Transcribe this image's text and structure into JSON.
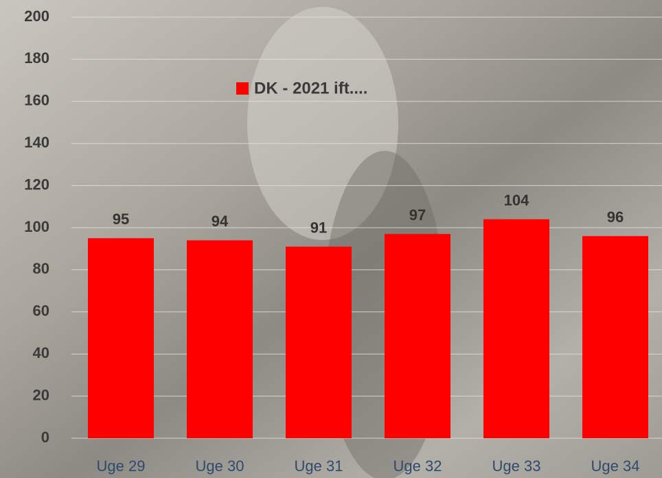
{
  "chart_data": {
    "type": "bar",
    "categories": [
      "Uge 29",
      "Uge 30",
      "Uge 31",
      "Uge 32",
      "Uge 33",
      "Uge 34"
    ],
    "series": [
      {
        "name": "DK - 2021 ift....",
        "color": "#ff0000",
        "values": [
          95,
          94,
          91,
          97,
          104,
          96
        ]
      }
    ],
    "ylim": [
      0,
      200
    ],
    "yticks": [
      0,
      20,
      40,
      60,
      80,
      100,
      120,
      140,
      160,
      180,
      200
    ],
    "grid": true,
    "data_labels": true
  }
}
